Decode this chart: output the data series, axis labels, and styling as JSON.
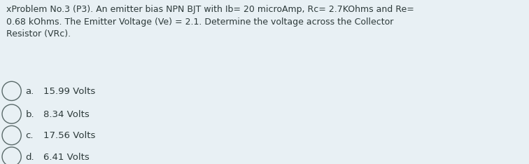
{
  "background_color": "#e8f0f4",
  "title_text": "xProblem No.3 (P3). An emitter bias NPN BJT with Ib= 20 microAmp, Rc= 2.7KOhms and Re=\n0.68 kOhms. The Emitter Voltage (Ve) = 2.1. Determine the voltage across the Collector\nResistor (VRc).",
  "options": [
    {
      "label": "a.",
      "text": "15.99 Volts"
    },
    {
      "label": "b.",
      "text": "8.34 Volts"
    },
    {
      "label": "c.",
      "text": "17.56 Volts"
    },
    {
      "label": "d.",
      "text": "6.41 Volts"
    }
  ],
  "text_color": "#2d3a3a",
  "font_size_title": 9.0,
  "font_size_options": 9.5,
  "circle_color": "#5a6a6a",
  "fig_width": 7.56,
  "fig_height": 2.34,
  "dpi": 100
}
